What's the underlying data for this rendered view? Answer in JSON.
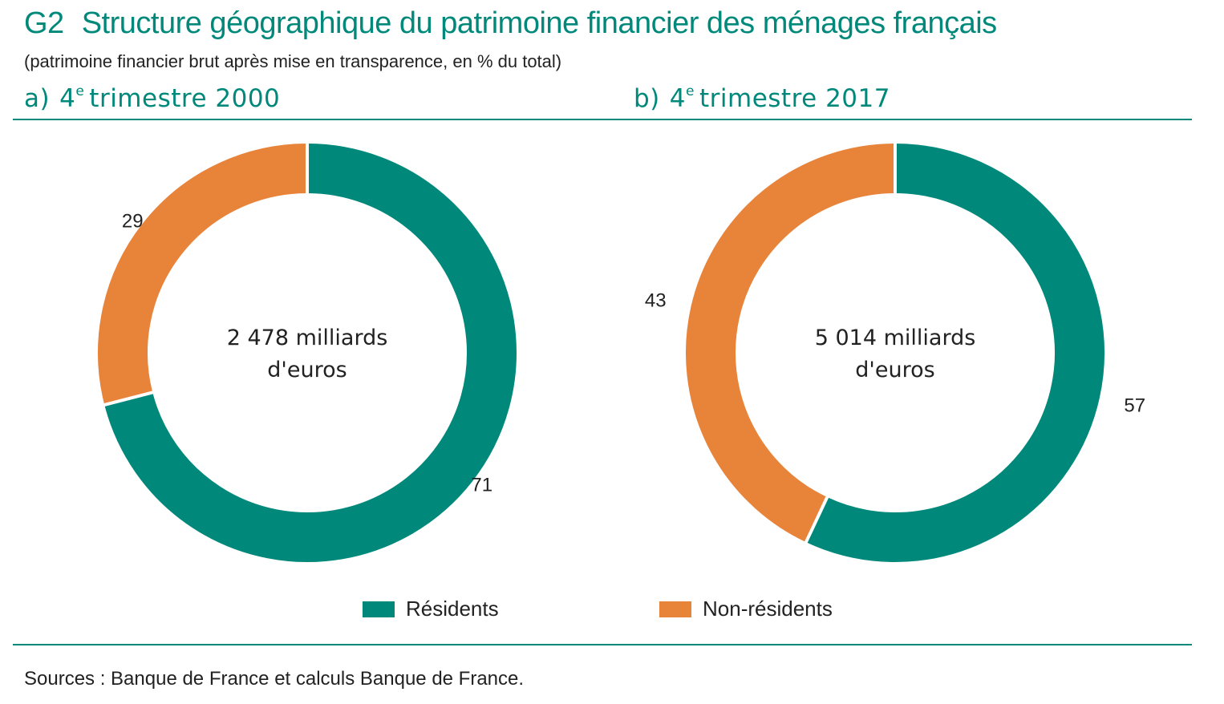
{
  "figure": {
    "number": "G2",
    "title": "Structure géographique du patrimoine financier des ménages français",
    "subtitle": "(patrimoine financier brut après mise en transparence, en % du total)",
    "source": "Sources : Banque de France et calculs Banque de France."
  },
  "panels": [
    {
      "letter": "a)",
      "prefix": "4",
      "sup": "e",
      "label": "trimestre 2000"
    },
    {
      "letter": "b)",
      "prefix": "4",
      "sup": "e",
      "label": "trimestre 2017"
    }
  ],
  "legend": [
    {
      "label": "Résidents",
      "color": "#00897b"
    },
    {
      "label": "Non-résidents",
      "color": "#e8833a"
    }
  ],
  "chart_data": [
    {
      "type": "pie",
      "donut": true,
      "title": "4e trimestre 2000",
      "center_text": [
        "2 478 milliards",
        "d'euros"
      ],
      "categories": [
        "Résidents",
        "Non-résidents"
      ],
      "values": [
        71,
        29
      ],
      "colors": [
        "#00897b",
        "#e8833a"
      ],
      "value_labels": [
        "71",
        "29"
      ]
    },
    {
      "type": "pie",
      "donut": true,
      "title": "4e trimestre 2017",
      "center_text": [
        "5 014 milliards",
        "d'euros"
      ],
      "categories": [
        "Résidents",
        "Non-résidents"
      ],
      "values": [
        57,
        43
      ],
      "colors": [
        "#00897b",
        "#e8833a"
      ],
      "value_labels": [
        "57",
        "43"
      ]
    }
  ]
}
